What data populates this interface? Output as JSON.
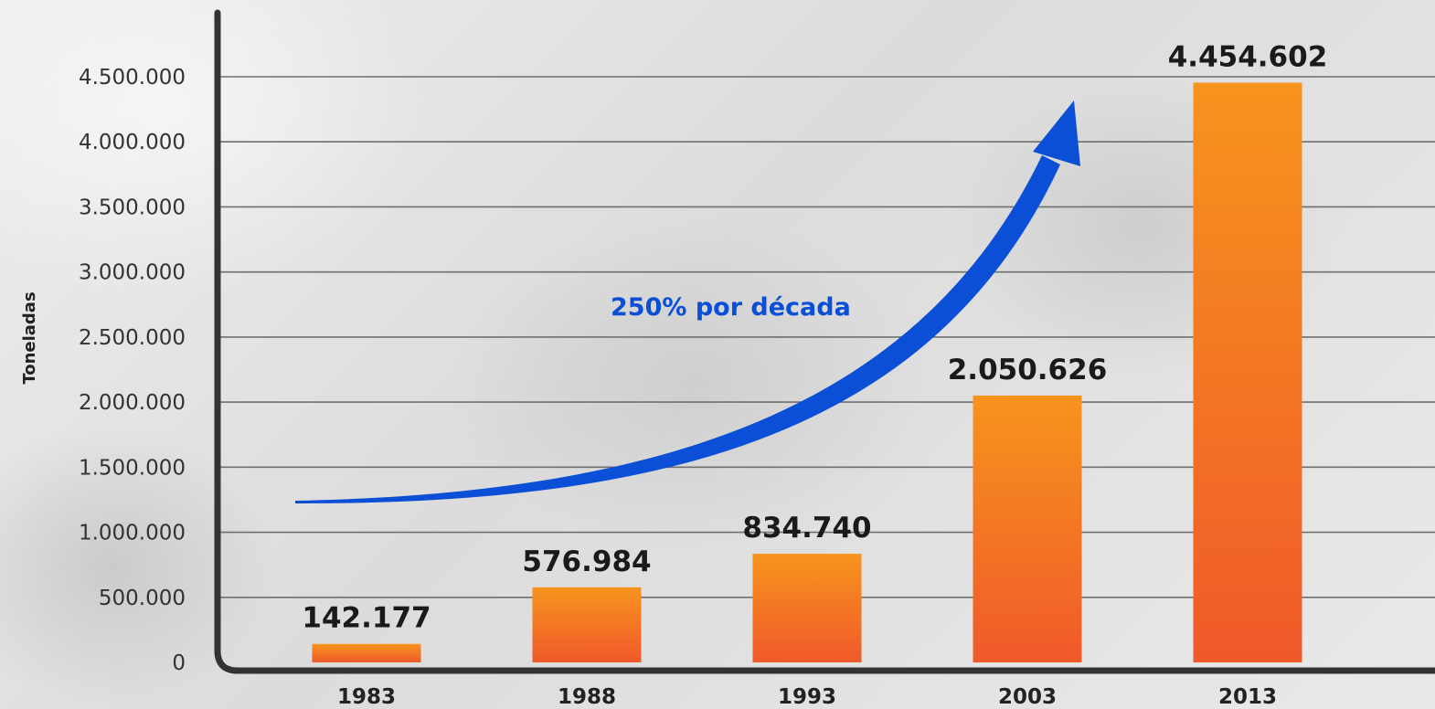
{
  "chart_data": {
    "type": "bar",
    "title": "",
    "xlabel": "",
    "ylabel": "Toneladas",
    "categories": [
      "1983",
      "1988",
      "1993",
      "2003",
      "2013"
    ],
    "values": [
      142177,
      576984,
      834740,
      2050626,
      4454602
    ],
    "value_labels": [
      "142.177",
      "576.984",
      "834.740",
      "2.050.626",
      "4.454.602"
    ],
    "ylim": [
      0,
      4500000
    ],
    "yticks": [
      0,
      500000,
      1000000,
      1500000,
      2000000,
      2500000,
      3000000,
      3500000,
      4000000,
      4500000
    ],
    "ytick_labels": [
      "0",
      "500.000",
      "1.000.000",
      "1.500.000",
      "2.000.000",
      "2.500.000",
      "3.000.000",
      "3.500.000",
      "4.000.000",
      "4.500.000"
    ],
    "grid": true,
    "annotation": {
      "text": "250% por década"
    },
    "colors": {
      "bar_top": "#f7941d",
      "bar_bottom": "#f0592a",
      "arrow": "#0a4fd6",
      "axis": "#333333",
      "grid": "#6f6f6f"
    }
  }
}
